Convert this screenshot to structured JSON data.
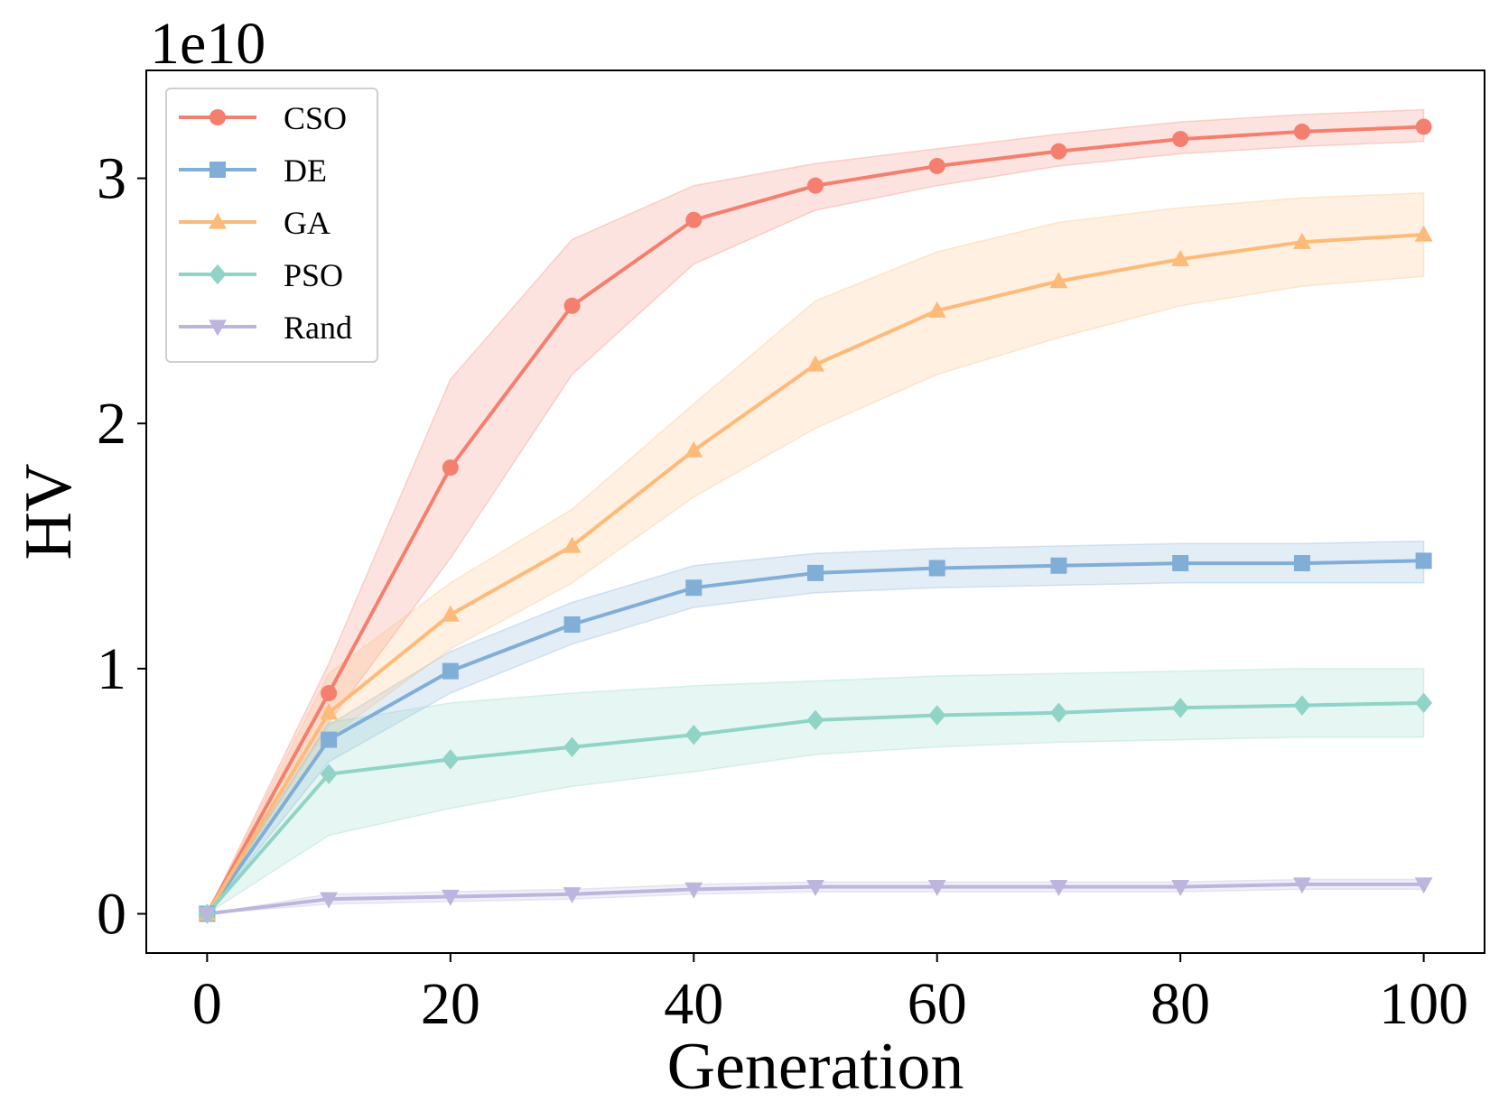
{
  "chart_data": {
    "type": "line",
    "title": "",
    "xlabel": "Generation",
    "ylabel": "HV",
    "y_offset_label": "1e10",
    "xlim": [
      -5,
      105
    ],
    "ylim": [
      -0.16,
      3.44
    ],
    "xticks": [
      0,
      20,
      40,
      60,
      80,
      100
    ],
    "xtick_labels": [
      "0",
      "20",
      "40",
      "60",
      "80",
      "100"
    ],
    "yticks": [
      0,
      1,
      2,
      3
    ],
    "ytick_labels": [
      "0",
      "1",
      "2",
      "3"
    ],
    "grid": false,
    "legend_position": "upper-left",
    "x": [
      0,
      10,
      20,
      30,
      40,
      50,
      60,
      70,
      80,
      90,
      100
    ],
    "series": [
      {
        "name": "CSO",
        "color": "#f47f6e",
        "marker": "circle",
        "values": [
          0.0,
          0.9,
          1.82,
          2.48,
          2.83,
          2.97,
          3.05,
          3.11,
          3.16,
          3.19,
          3.21
        ],
        "lower": [
          0.0,
          0.78,
          1.45,
          2.2,
          2.65,
          2.87,
          2.97,
          3.05,
          3.1,
          3.13,
          3.15
        ],
        "upper": [
          0.0,
          1.02,
          2.18,
          2.75,
          2.97,
          3.06,
          3.12,
          3.18,
          3.23,
          3.26,
          3.28
        ]
      },
      {
        "name": "DE",
        "color": "#80aed6",
        "marker": "square",
        "values": [
          0.0,
          0.71,
          0.99,
          1.18,
          1.33,
          1.39,
          1.41,
          1.42,
          1.43,
          1.43,
          1.44
        ],
        "lower": [
          0.0,
          0.62,
          0.9,
          1.1,
          1.25,
          1.31,
          1.33,
          1.34,
          1.35,
          1.35,
          1.35
        ],
        "upper": [
          0.0,
          0.77,
          1.07,
          1.27,
          1.42,
          1.47,
          1.49,
          1.5,
          1.51,
          1.51,
          1.52
        ]
      },
      {
        "name": "GA",
        "color": "#fdba78",
        "marker": "triangle-up",
        "values": [
          0.0,
          0.82,
          1.22,
          1.5,
          1.89,
          2.24,
          2.46,
          2.58,
          2.67,
          2.74,
          2.77
        ],
        "lower": [
          0.0,
          0.72,
          1.08,
          1.35,
          1.7,
          1.98,
          2.2,
          2.35,
          2.48,
          2.56,
          2.6
        ],
        "upper": [
          0.0,
          0.98,
          1.35,
          1.65,
          2.08,
          2.5,
          2.7,
          2.82,
          2.88,
          2.92,
          2.94
        ]
      },
      {
        "name": "PSO",
        "color": "#8fd4c6",
        "marker": "diamond",
        "values": [
          0.0,
          0.57,
          0.63,
          0.68,
          0.73,
          0.79,
          0.81,
          0.82,
          0.84,
          0.85,
          0.86
        ],
        "lower": [
          0.0,
          0.32,
          0.43,
          0.52,
          0.58,
          0.65,
          0.68,
          0.7,
          0.71,
          0.72,
          0.72
        ],
        "upper": [
          0.0,
          0.78,
          0.86,
          0.9,
          0.93,
          0.95,
          0.97,
          0.98,
          0.99,
          1.0,
          1.0
        ]
      },
      {
        "name": "Rand",
        "color": "#bdb5de",
        "marker": "triangle-down",
        "values": [
          0.0,
          0.06,
          0.07,
          0.08,
          0.1,
          0.11,
          0.11,
          0.11,
          0.11,
          0.12,
          0.12
        ],
        "lower": [
          0.0,
          0.04,
          0.05,
          0.06,
          0.08,
          0.09,
          0.09,
          0.09,
          0.09,
          0.1,
          0.1
        ],
        "upper": [
          0.0,
          0.08,
          0.09,
          0.1,
          0.12,
          0.13,
          0.13,
          0.13,
          0.13,
          0.14,
          0.14
        ]
      }
    ]
  }
}
